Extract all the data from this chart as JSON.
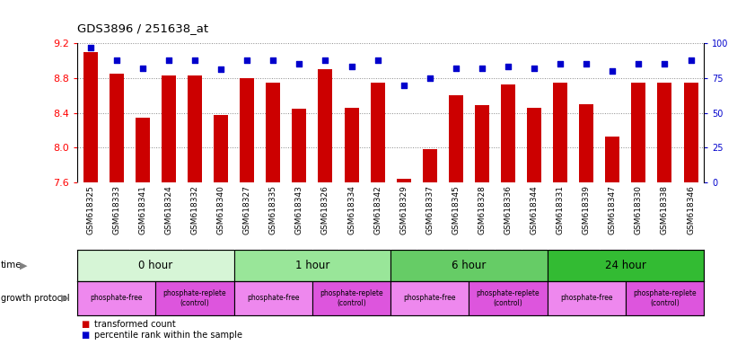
{
  "title": "GDS3896 / 251638_at",
  "samples": [
    "GSM618325",
    "GSM618333",
    "GSM618341",
    "GSM618324",
    "GSM618332",
    "GSM618340",
    "GSM618327",
    "GSM618335",
    "GSM618343",
    "GSM618326",
    "GSM618334",
    "GSM618342",
    "GSM618329",
    "GSM618337",
    "GSM618345",
    "GSM618328",
    "GSM618336",
    "GSM618344",
    "GSM618331",
    "GSM618339",
    "GSM618347",
    "GSM618330",
    "GSM618338",
    "GSM618346"
  ],
  "transformed_counts": [
    9.1,
    8.85,
    8.34,
    8.83,
    8.83,
    8.37,
    8.8,
    8.75,
    8.45,
    8.9,
    8.46,
    8.75,
    7.64,
    7.98,
    8.6,
    8.49,
    8.73,
    8.46,
    8.75,
    8.5,
    8.13,
    8.75,
    8.75,
    8.75
  ],
  "percentile_ranks": [
    97,
    88,
    82,
    88,
    88,
    81,
    88,
    88,
    85,
    88,
    83,
    88,
    70,
    75,
    82,
    82,
    83,
    82,
    85,
    85,
    80,
    85,
    85,
    88
  ],
  "ylim": [
    7.6,
    9.2
  ],
  "yticks": [
    7.6,
    8.0,
    8.4,
    8.8,
    9.2
  ],
  "right_yticks": [
    0,
    25,
    50,
    75,
    100
  ],
  "bar_color": "#cc0000",
  "dot_color": "#0000cc",
  "time_groups": [
    {
      "label": "0 hour",
      "start": 0,
      "end": 6,
      "color": "#d6f5d6"
    },
    {
      "label": "1 hour",
      "start": 6,
      "end": 12,
      "color": "#99e699"
    },
    {
      "label": "6 hour",
      "start": 12,
      "end": 18,
      "color": "#66cc66"
    },
    {
      "label": "24 hour",
      "start": 18,
      "end": 24,
      "color": "#33bb33"
    }
  ],
  "protocol_groups": [
    {
      "label": "phosphate-free",
      "start": 0,
      "end": 3,
      "color": "#ee88ee"
    },
    {
      "label": "phosphate-replete\n(control)",
      "start": 3,
      "end": 6,
      "color": "#dd55dd"
    },
    {
      "label": "phosphate-free",
      "start": 6,
      "end": 9,
      "color": "#ee88ee"
    },
    {
      "label": "phosphate-replete\n(control)",
      "start": 9,
      "end": 12,
      "color": "#dd55dd"
    },
    {
      "label": "phosphate-free",
      "start": 12,
      "end": 15,
      "color": "#ee88ee"
    },
    {
      "label": "phosphate-replete\n(control)",
      "start": 15,
      "end": 18,
      "color": "#dd55dd"
    },
    {
      "label": "phosphate-free",
      "start": 18,
      "end": 21,
      "color": "#ee88ee"
    },
    {
      "label": "phosphate-replete\n(control)",
      "start": 21,
      "end": 24,
      "color": "#dd55dd"
    }
  ],
  "label_bg_color": "#dddddd",
  "plot_bg_color": "#ffffff",
  "legend_items": [
    {
      "color": "#cc0000",
      "marker": "s",
      "label": "transformed count"
    },
    {
      "color": "#0000cc",
      "marker": "s",
      "label": "percentile rank within the sample"
    }
  ]
}
